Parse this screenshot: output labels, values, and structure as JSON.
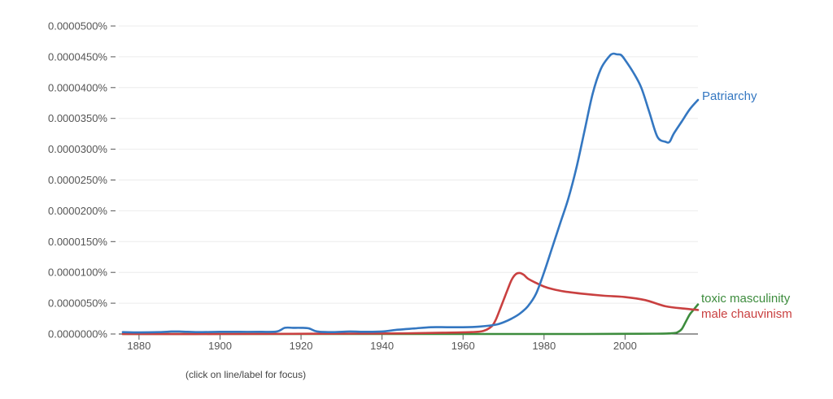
{
  "chart_data": {
    "type": "line",
    "x_ticks": [
      "1880",
      "1900",
      "1920",
      "1940",
      "1960",
      "1980",
      "2000"
    ],
    "y_ticks": [
      "0.0000000%",
      "0.0000050%",
      "0.0000100%",
      "0.0000150%",
      "0.0000200%",
      "0.0000250%",
      "0.0000300%",
      "0.0000350%",
      "0.0000400%",
      "0.0000450%",
      "0.0000500%"
    ],
    "xlim": [
      1875,
      2018
    ],
    "ylim": [
      0,
      5e-07
    ],
    "grid": true,
    "legend": "right, labels at line ends",
    "series": [
      {
        "name": "Patriarchy",
        "color": "#3477c1",
        "x": [
          1876,
          1880,
          1885,
          1888,
          1890,
          1892,
          1895,
          1900,
          1905,
          1910,
          1914,
          1916,
          1918,
          1920,
          1922,
          1924,
          1928,
          1932,
          1936,
          1940,
          1944,
          1948,
          1952,
          1956,
          1960,
          1964,
          1968,
          1970,
          1972,
          1974,
          1976,
          1978,
          1980,
          1982,
          1984,
          1986,
          1988,
          1990,
          1992,
          1994,
          1996,
          1997,
          1998,
          1999,
          2000,
          2002,
          2004,
          2006,
          2008,
          2010,
          2011,
          2012,
          2014,
          2016,
          2018
        ],
        "values": [
          3e-09,
          2.5e-09,
          3e-09,
          4e-09,
          4e-09,
          3.5e-09,
          3e-09,
          3.5e-09,
          3.5e-09,
          3.5e-09,
          4e-09,
          1e-08,
          1e-08,
          1e-08,
          9e-09,
          4e-09,
          3e-09,
          4e-09,
          3.5e-09,
          4e-09,
          7e-09,
          9e-09,
          1.1e-08,
          1.1e-08,
          1.1e-08,
          1.2e-08,
          1.5e-08,
          1.9e-08,
          2.5e-08,
          3.3e-08,
          4.5e-08,
          6.5e-08,
          1e-07,
          1.4e-07,
          1.8e-07,
          2.2e-07,
          2.7e-07,
          3.3e-07,
          3.9e-07,
          4.3e-07,
          4.5e-07,
          4.55e-07,
          4.54e-07,
          4.53e-07,
          4.45e-07,
          4.25e-07,
          4e-07,
          3.6e-07,
          3.2e-07,
          3.12e-07,
          3.12e-07,
          3.25e-07,
          3.45e-07,
          3.65e-07,
          3.8e-07
        ]
      },
      {
        "name": "male chauvinism",
        "color": "#c94040",
        "x": [
          1876,
          1900,
          1930,
          1945,
          1955,
          1962,
          1965,
          1967,
          1968,
          1969,
          1970,
          1971,
          1972,
          1973,
          1974,
          1975,
          1976,
          1978,
          1980,
          1982,
          1985,
          1990,
          1995,
          2000,
          2005,
          2010,
          2015,
          2018
        ],
        "values": [
          0.0,
          0.0,
          5e-10,
          1e-09,
          2e-09,
          3e-09,
          5e-09,
          1.2e-08,
          2.2e-08,
          3.8e-08,
          5.5e-08,
          7.2e-08,
          8.8e-08,
          9.7e-08,
          9.9e-08,
          9.6e-08,
          9e-08,
          8.3e-08,
          7.7e-08,
          7.3e-08,
          6.9e-08,
          6.5e-08,
          6.2e-08,
          6e-08,
          5.5e-08,
          4.5e-08,
          4.1e-08,
          3.9e-08
        ]
      },
      {
        "name": "toxic masculinity",
        "color": "#3d8c3d",
        "x": [
          1876,
          1950,
          1990,
          2008,
          2012,
          2013,
          2014,
          2015,
          2016,
          2017,
          2018
        ],
        "values": [
          0.0,
          0.0,
          0.0,
          5e-10,
          1.5e-09,
          3e-09,
          8e-09,
          2e-08,
          3.2e-08,
          4e-08,
          4.8e-08
        ]
      }
    ]
  },
  "labels": {
    "patriarchy": "Patriarchy",
    "toxic": "toxic masculinity",
    "male": "male chauvinism"
  },
  "hint": "(click on line/label for focus)"
}
